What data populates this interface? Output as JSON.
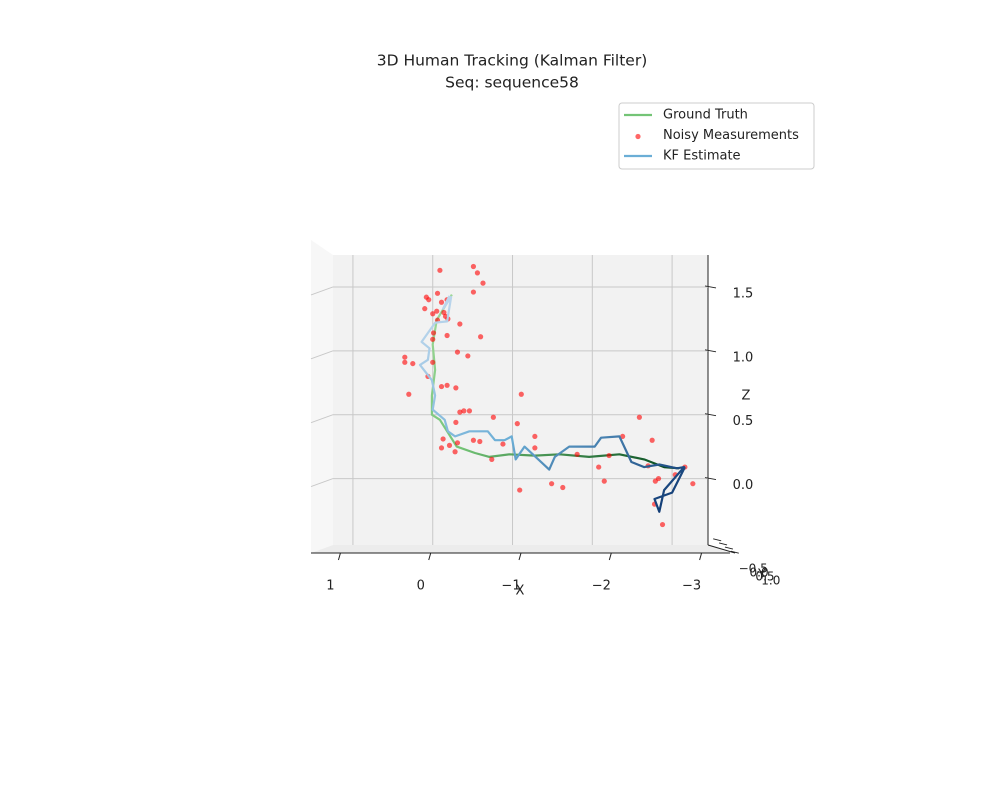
{
  "chart_data": {
    "type": "line3d",
    "title": "3D Human Tracking (Kalman Filter)",
    "subtitle": "Seq: sequence58",
    "xlabel": "X",
    "ylabel": "Y",
    "zlabel": "Z",
    "xlim": [
      1.25,
      -3.45
    ],
    "xticks": [
      1,
      0,
      {
        "value": -1,
        "label": "−1"
      },
      {
        "value": -2,
        "label": "−2"
      },
      {
        "value": -3,
        "label": "−3"
      }
    ],
    "ylim": [
      -0.6,
      1.1
    ],
    "yticks": [
      {
        "value": -0.5,
        "label": "−0.5"
      },
      {
        "value": 0,
        "label": "0.0"
      },
      0.5,
      {
        "value": 1,
        "label": "1.0"
      }
    ],
    "zlim": [
      -0.52,
      1.75
    ],
    "zticks": [
      {
        "value": 0,
        "label": "0.0"
      },
      0.5,
      {
        "value": 1,
        "label": "1.0"
      },
      1.5
    ],
    "grid": true,
    "legend": "upper right",
    "series": [
      {
        "name": "Ground Truth",
        "kind": "line",
        "color": "#74c476",
        "x": [
          -0.24,
          -0.05,
          0.0,
          -0.03,
          0.01,
          0.01,
          -0.09,
          -0.21,
          -0.3,
          -0.53,
          -0.71,
          -0.96,
          -1.28,
          -1.59,
          -1.96,
          -2.34,
          -2.65,
          -2.9,
          -3.09
        ],
        "z": [
          1.44,
          1.24,
          1.05,
          0.85,
          0.65,
          0.5,
          0.46,
          0.34,
          0.25,
          0.2,
          0.17,
          0.19,
          0.18,
          0.19,
          0.17,
          0.19,
          0.15,
          0.09,
          0.08
        ]
      },
      {
        "name": "Noisy Measurements",
        "kind": "scatter",
        "color": "#ff0000",
        "x": [
          -0.51,
          -0.09,
          -0.56,
          -0.63,
          -0.06,
          -0.51,
          0.08,
          0.05,
          -0.18,
          -0.11,
          0.1,
          -0.05,
          -0.14,
          0.0,
          -0.16,
          -0.06,
          -0.19,
          -0.34,
          -0.6,
          -0.01,
          -0.18,
          0.0,
          -0.31,
          -0.44,
          0.35,
          0.35,
          0.25,
          0.0,
          -0.18,
          -0.11,
          -0.29,
          0.06,
          0.3,
          -1.11,
          -0.34,
          -0.39,
          -0.46,
          -0.76,
          -0.29,
          -1.06,
          -2.59,
          -1.28,
          -0.13,
          -2.38,
          -2.75,
          -0.51,
          -0.59,
          -0.88,
          -0.31,
          -0.21,
          -0.11,
          -1.28,
          -0.28,
          -1.81,
          -2.21,
          -0.74,
          -3.16,
          -2.08,
          -2.7,
          -3.04,
          -2.83,
          -2.79,
          -2.15,
          -3.26,
          -1.49,
          -1.63,
          -1.09,
          -2.78,
          -2.88
        ],
        "z": [
          1.66,
          1.63,
          1.61,
          1.53,
          1.45,
          1.46,
          1.42,
          1.4,
          1.4,
          1.38,
          1.33,
          1.31,
          1.3,
          1.29,
          1.27,
          1.24,
          1.25,
          1.21,
          1.11,
          1.14,
          1.12,
          1.09,
          0.99,
          0.96,
          0.95,
          0.91,
          0.9,
          0.91,
          0.73,
          0.72,
          0.71,
          0.8,
          0.66,
          0.66,
          0.52,
          0.53,
          0.53,
          0.48,
          0.44,
          0.43,
          0.48,
          0.33,
          0.31,
          0.33,
          0.3,
          0.3,
          0.29,
          0.27,
          0.28,
          0.26,
          0.24,
          0.24,
          0.21,
          0.19,
          0.18,
          0.15,
          0.09,
          0.09,
          0.1,
          0.03,
          0.0,
          -0.02,
          -0.02,
          -0.04,
          -0.04,
          -0.07,
          -0.09,
          -0.2,
          -0.36
        ]
      },
      {
        "name": "KF Estimate",
        "kind": "line",
        "color": "#6baed6",
        "x": [
          -0.21,
          -0.13,
          -0.23,
          -0.18,
          -0.03,
          0.14,
          0.04,
          0.06,
          0.16,
          0.01,
          -0.03,
          0.0,
          -0.15,
          -0.19,
          -0.28,
          -0.46,
          -0.69,
          -0.78,
          -0.9,
          -0.99,
          -1.04,
          -1.15,
          -1.46,
          -1.53,
          -1.71,
          -2.03,
          -2.11,
          -2.34,
          -2.49,
          -2.65,
          -2.84,
          -3.06,
          -3.15,
          -2.9,
          -2.84,
          -2.78,
          -3.0,
          -3.16
        ],
        "z": [
          1.43,
          1.33,
          1.42,
          1.23,
          1.22,
          1.07,
          1.02,
          0.93,
          0.89,
          0.77,
          0.65,
          0.54,
          0.46,
          0.37,
          0.33,
          0.37,
          0.37,
          0.3,
          0.3,
          0.33,
          0.15,
          0.25,
          0.07,
          0.17,
          0.25,
          0.25,
          0.32,
          0.33,
          0.13,
          0.09,
          0.11,
          0.08,
          0.09,
          -0.09,
          -0.26,
          -0.16,
          -0.11,
          0.09
        ]
      }
    ]
  }
}
